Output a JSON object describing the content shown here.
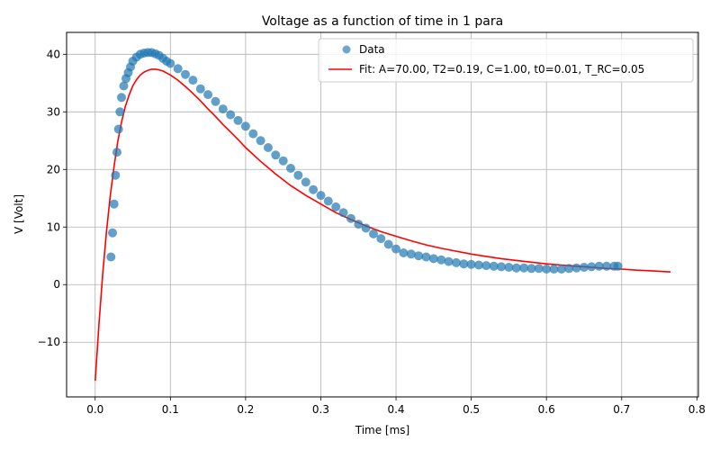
{
  "chart_data": {
    "type": "scatter",
    "title": "Voltage as a function of time in 1 para",
    "xlabel": "Time [ms]",
    "ylabel": "V [Volt]",
    "xlim": [
      -0.038,
      0.802
    ],
    "ylim": [
      -19.5,
      43.8
    ],
    "xticks": [
      0.0,
      0.1,
      0.2,
      0.3,
      0.4,
      0.5,
      0.6,
      0.7,
      0.8
    ],
    "xtick_labels": [
      "0.0",
      "0.1",
      "0.2",
      "0.3",
      "0.4",
      "0.5",
      "0.6",
      "0.7",
      "0.8"
    ],
    "yticks": [
      -10,
      0,
      10,
      20,
      30,
      40
    ],
    "ytick_labels": [
      "−10",
      "0",
      "10",
      "20",
      "30",
      "40"
    ],
    "grid": true,
    "legend_position": "top-right",
    "colors": {
      "data": "#1f77b4",
      "fit": "#ff0000"
    },
    "legend": [
      {
        "label": "Data",
        "kind": "marker",
        "color": "#1f77b4"
      },
      {
        "label": "Fit: A=70.00, T2=0.19, C=1.00, t0=0.01, T_RC=0.05",
        "kind": "line",
        "color": "#ff0000"
      }
    ],
    "series": [
      {
        "name": "Data",
        "kind": "scatter",
        "x": [
          0.021,
          0.023,
          0.025,
          0.027,
          0.029,
          0.031,
          0.033,
          0.035,
          0.038,
          0.041,
          0.044,
          0.047,
          0.05,
          0.055,
          0.06,
          0.065,
          0.07,
          0.075,
          0.08,
          0.085,
          0.09,
          0.095,
          0.1,
          0.11,
          0.12,
          0.13,
          0.14,
          0.15,
          0.16,
          0.17,
          0.18,
          0.19,
          0.2,
          0.21,
          0.22,
          0.23,
          0.24,
          0.25,
          0.26,
          0.27,
          0.28,
          0.29,
          0.3,
          0.31,
          0.32,
          0.33,
          0.34,
          0.35,
          0.36,
          0.37,
          0.38,
          0.39,
          0.4,
          0.41,
          0.42,
          0.43,
          0.44,
          0.45,
          0.46,
          0.47,
          0.48,
          0.49,
          0.5,
          0.51,
          0.52,
          0.53,
          0.54,
          0.55,
          0.56,
          0.57,
          0.58,
          0.59,
          0.6,
          0.61,
          0.62,
          0.63,
          0.64,
          0.65,
          0.66,
          0.67,
          0.68,
          0.69,
          0.695
        ],
        "y": [
          4.8,
          9.0,
          14.0,
          19.0,
          23.0,
          27.0,
          30.0,
          32.5,
          34.5,
          35.8,
          36.8,
          37.8,
          38.8,
          39.5,
          40.0,
          40.2,
          40.3,
          40.3,
          40.1,
          39.8,
          39.3,
          38.8,
          38.4,
          37.5,
          36.5,
          35.5,
          34.0,
          33.0,
          31.8,
          30.5,
          29.5,
          28.5,
          27.5,
          26.2,
          25.0,
          23.8,
          22.5,
          21.5,
          20.2,
          19.0,
          17.8,
          16.5,
          15.5,
          14.5,
          13.5,
          12.5,
          11.5,
          10.5,
          9.8,
          8.8,
          8.0,
          7.0,
          6.2,
          5.5,
          5.3,
          5.0,
          4.8,
          4.5,
          4.3,
          4.0,
          3.8,
          3.6,
          3.5,
          3.4,
          3.3,
          3.2,
          3.1,
          3.0,
          2.9,
          2.9,
          2.8,
          2.8,
          2.7,
          2.7,
          2.7,
          2.8,
          2.9,
          3.0,
          3.1,
          3.2,
          3.2,
          3.2,
          3.2
        ]
      },
      {
        "name": "Fit: A=70.00, T2=0.19, C=1.00, t0=0.01, T_RC=0.05",
        "kind": "line",
        "x": [
          0.0,
          0.005,
          0.01,
          0.015,
          0.02,
          0.025,
          0.03,
          0.035,
          0.04,
          0.045,
          0.05,
          0.055,
          0.06,
          0.065,
          0.07,
          0.075,
          0.08,
          0.085,
          0.09,
          0.1,
          0.11,
          0.12,
          0.13,
          0.14,
          0.15,
          0.16,
          0.17,
          0.18,
          0.19,
          0.2,
          0.22,
          0.24,
          0.26,
          0.28,
          0.3,
          0.32,
          0.34,
          0.36,
          0.38,
          0.4,
          0.42,
          0.44,
          0.46,
          0.48,
          0.5,
          0.52,
          0.54,
          0.56,
          0.58,
          0.6,
          0.62,
          0.64,
          0.66,
          0.68,
          0.7,
          0.72,
          0.74,
          0.765
        ],
        "y": [
          -16.7,
          -7.0,
          1.8,
          9.2,
          15.4,
          20.5,
          24.8,
          28.2,
          30.9,
          32.9,
          34.5,
          35.6,
          36.4,
          36.9,
          37.2,
          37.4,
          37.4,
          37.3,
          37.1,
          36.4,
          35.5,
          34.4,
          33.2,
          31.9,
          30.5,
          29.2,
          27.8,
          26.5,
          25.2,
          23.8,
          21.4,
          19.2,
          17.2,
          15.5,
          14.0,
          12.5,
          11.3,
          10.2,
          9.2,
          8.4,
          7.6,
          6.9,
          6.3,
          5.8,
          5.3,
          4.9,
          4.5,
          4.2,
          3.9,
          3.6,
          3.4,
          3.2,
          3.0,
          2.8,
          2.7,
          2.5,
          2.4,
          2.2
        ]
      }
    ]
  }
}
